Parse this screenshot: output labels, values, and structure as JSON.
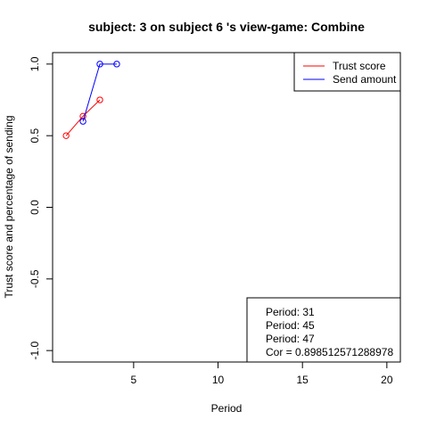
{
  "chart_data": {
    "type": "line",
    "title": "subject:  3  on subject  6 's view-game:  Combine",
    "xlabel": "Period",
    "ylabel": "Trust score and percentage of sending",
    "xlim": [
      0.2,
      20.8
    ],
    "ylim": [
      -1.08,
      1.08
    ],
    "x_ticks": [
      5,
      10,
      15,
      20
    ],
    "x_tick_labels": [
      "5",
      "10",
      "15",
      "20"
    ],
    "y_ticks": [
      -1.0,
      -0.5,
      0.0,
      0.5,
      1.0
    ],
    "y_tick_labels": [
      "-1.0",
      "-0.5",
      "0.0",
      "0.5",
      "1.0"
    ],
    "grid": false,
    "legend_position": "top-right",
    "series": [
      {
        "name": "Trust score",
        "color": "#ff0000",
        "x": [
          1,
          2,
          3
        ],
        "y": [
          0.5,
          0.636,
          0.75
        ]
      },
      {
        "name": "Send amount",
        "color": "#0000ff",
        "x": [
          2,
          3,
          4
        ],
        "y": [
          0.6,
          1.0,
          1.0
        ]
      }
    ],
    "annotation_lines": [
      "Period:  31",
      "Period:  45",
      "Period:  47",
      "Cor =  0.898512571288978"
    ]
  }
}
